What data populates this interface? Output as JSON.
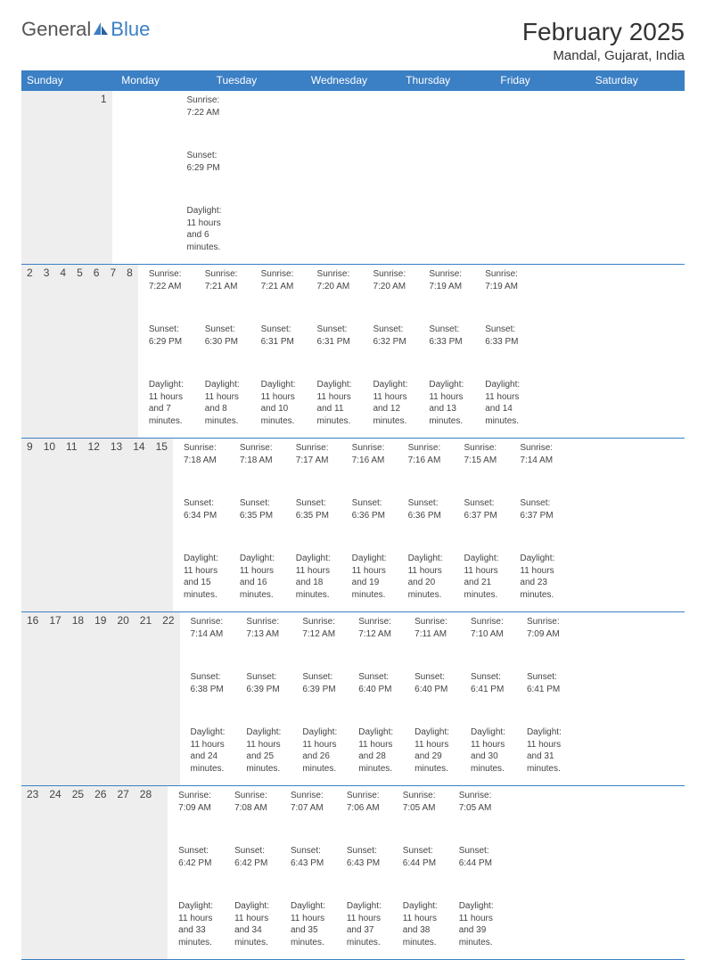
{
  "logo": {
    "word1": "General",
    "word2": "Blue"
  },
  "title": {
    "month": "February 2025",
    "location": "Mandal, Gujarat, India"
  },
  "colors": {
    "header_bg": "#3b7fc4",
    "header_text": "#ffffff",
    "daynum_bg": "#eeeeee",
    "rule": "#3b7fc4",
    "text": "#444444",
    "page_bg": "#ffffff",
    "logo_gray": "#555555",
    "logo_blue": "#3b7fc4"
  },
  "layout": {
    "columns": 7,
    "rows": 5
  },
  "dayNames": [
    "Sunday",
    "Monday",
    "Tuesday",
    "Wednesday",
    "Thursday",
    "Friday",
    "Saturday"
  ],
  "weeks": [
    [
      {
        "day": "",
        "sunrise": "",
        "sunset": "",
        "daylight": ""
      },
      {
        "day": "",
        "sunrise": "",
        "sunset": "",
        "daylight": ""
      },
      {
        "day": "",
        "sunrise": "",
        "sunset": "",
        "daylight": ""
      },
      {
        "day": "",
        "sunrise": "",
        "sunset": "",
        "daylight": ""
      },
      {
        "day": "",
        "sunrise": "",
        "sunset": "",
        "daylight": ""
      },
      {
        "day": "",
        "sunrise": "",
        "sunset": "",
        "daylight": ""
      },
      {
        "day": "1",
        "sunrise": "Sunrise: 7:22 AM",
        "sunset": "Sunset: 6:29 PM",
        "daylight": "Daylight: 11 hours and 6 minutes."
      }
    ],
    [
      {
        "day": "2",
        "sunrise": "Sunrise: 7:22 AM",
        "sunset": "Sunset: 6:29 PM",
        "daylight": "Daylight: 11 hours and 7 minutes."
      },
      {
        "day": "3",
        "sunrise": "Sunrise: 7:21 AM",
        "sunset": "Sunset: 6:30 PM",
        "daylight": "Daylight: 11 hours and 8 minutes."
      },
      {
        "day": "4",
        "sunrise": "Sunrise: 7:21 AM",
        "sunset": "Sunset: 6:31 PM",
        "daylight": "Daylight: 11 hours and 10 minutes."
      },
      {
        "day": "5",
        "sunrise": "Sunrise: 7:20 AM",
        "sunset": "Sunset: 6:31 PM",
        "daylight": "Daylight: 11 hours and 11 minutes."
      },
      {
        "day": "6",
        "sunrise": "Sunrise: 7:20 AM",
        "sunset": "Sunset: 6:32 PM",
        "daylight": "Daylight: 11 hours and 12 minutes."
      },
      {
        "day": "7",
        "sunrise": "Sunrise: 7:19 AM",
        "sunset": "Sunset: 6:33 PM",
        "daylight": "Daylight: 11 hours and 13 minutes."
      },
      {
        "day": "8",
        "sunrise": "Sunrise: 7:19 AM",
        "sunset": "Sunset: 6:33 PM",
        "daylight": "Daylight: 11 hours and 14 minutes."
      }
    ],
    [
      {
        "day": "9",
        "sunrise": "Sunrise: 7:18 AM",
        "sunset": "Sunset: 6:34 PM",
        "daylight": "Daylight: 11 hours and 15 minutes."
      },
      {
        "day": "10",
        "sunrise": "Sunrise: 7:18 AM",
        "sunset": "Sunset: 6:35 PM",
        "daylight": "Daylight: 11 hours and 16 minutes."
      },
      {
        "day": "11",
        "sunrise": "Sunrise: 7:17 AM",
        "sunset": "Sunset: 6:35 PM",
        "daylight": "Daylight: 11 hours and 18 minutes."
      },
      {
        "day": "12",
        "sunrise": "Sunrise: 7:16 AM",
        "sunset": "Sunset: 6:36 PM",
        "daylight": "Daylight: 11 hours and 19 minutes."
      },
      {
        "day": "13",
        "sunrise": "Sunrise: 7:16 AM",
        "sunset": "Sunset: 6:36 PM",
        "daylight": "Daylight: 11 hours and 20 minutes."
      },
      {
        "day": "14",
        "sunrise": "Sunrise: 7:15 AM",
        "sunset": "Sunset: 6:37 PM",
        "daylight": "Daylight: 11 hours and 21 minutes."
      },
      {
        "day": "15",
        "sunrise": "Sunrise: 7:14 AM",
        "sunset": "Sunset: 6:37 PM",
        "daylight": "Daylight: 11 hours and 23 minutes."
      }
    ],
    [
      {
        "day": "16",
        "sunrise": "Sunrise: 7:14 AM",
        "sunset": "Sunset: 6:38 PM",
        "daylight": "Daylight: 11 hours and 24 minutes."
      },
      {
        "day": "17",
        "sunrise": "Sunrise: 7:13 AM",
        "sunset": "Sunset: 6:39 PM",
        "daylight": "Daylight: 11 hours and 25 minutes."
      },
      {
        "day": "18",
        "sunrise": "Sunrise: 7:12 AM",
        "sunset": "Sunset: 6:39 PM",
        "daylight": "Daylight: 11 hours and 26 minutes."
      },
      {
        "day": "19",
        "sunrise": "Sunrise: 7:12 AM",
        "sunset": "Sunset: 6:40 PM",
        "daylight": "Daylight: 11 hours and 28 minutes."
      },
      {
        "day": "20",
        "sunrise": "Sunrise: 7:11 AM",
        "sunset": "Sunset: 6:40 PM",
        "daylight": "Daylight: 11 hours and 29 minutes."
      },
      {
        "day": "21",
        "sunrise": "Sunrise: 7:10 AM",
        "sunset": "Sunset: 6:41 PM",
        "daylight": "Daylight: 11 hours and 30 minutes."
      },
      {
        "day": "22",
        "sunrise": "Sunrise: 7:09 AM",
        "sunset": "Sunset: 6:41 PM",
        "daylight": "Daylight: 11 hours and 31 minutes."
      }
    ],
    [
      {
        "day": "23",
        "sunrise": "Sunrise: 7:09 AM",
        "sunset": "Sunset: 6:42 PM",
        "daylight": "Daylight: 11 hours and 33 minutes."
      },
      {
        "day": "24",
        "sunrise": "Sunrise: 7:08 AM",
        "sunset": "Sunset: 6:42 PM",
        "daylight": "Daylight: 11 hours and 34 minutes."
      },
      {
        "day": "25",
        "sunrise": "Sunrise: 7:07 AM",
        "sunset": "Sunset: 6:43 PM",
        "daylight": "Daylight: 11 hours and 35 minutes."
      },
      {
        "day": "26",
        "sunrise": "Sunrise: 7:06 AM",
        "sunset": "Sunset: 6:43 PM",
        "daylight": "Daylight: 11 hours and 37 minutes."
      },
      {
        "day": "27",
        "sunrise": "Sunrise: 7:05 AM",
        "sunset": "Sunset: 6:44 PM",
        "daylight": "Daylight: 11 hours and 38 minutes."
      },
      {
        "day": "28",
        "sunrise": "Sunrise: 7:05 AM",
        "sunset": "Sunset: 6:44 PM",
        "daylight": "Daylight: 11 hours and 39 minutes."
      },
      {
        "day": "",
        "sunrise": "",
        "sunset": "",
        "daylight": ""
      }
    ]
  ]
}
